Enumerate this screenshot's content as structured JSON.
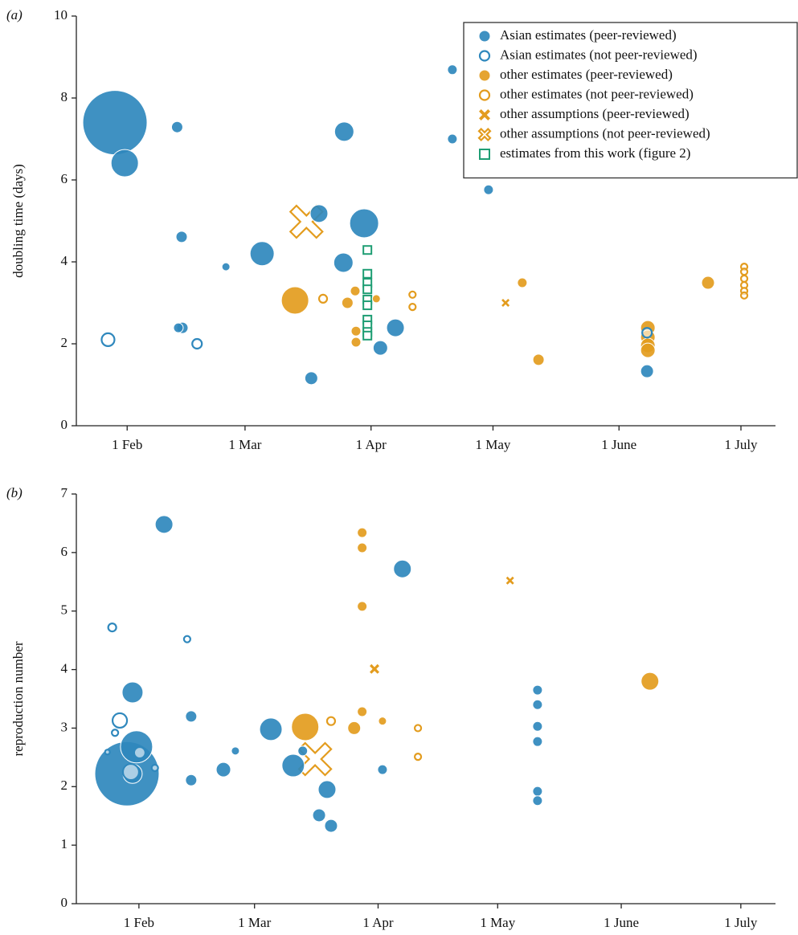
{
  "chart_data": [
    {
      "type": "scatter",
      "panel_label": "(a)",
      "y_label": "doubling time (days)",
      "xlim": [
        19.5,
        191.5
      ],
      "ylim": [
        0,
        10
      ],
      "xticks": [
        {
          "value": 32,
          "label": "1 Feb"
        },
        {
          "value": 61,
          "label": "1 Mar"
        },
        {
          "value": 92,
          "label": "1 Apr"
        },
        {
          "value": 122,
          "label": "1 May"
        },
        {
          "value": 153,
          "label": "1 June"
        },
        {
          "value": 183,
          "label": "1 July"
        }
      ],
      "yticks": [
        0,
        2,
        4,
        6,
        8,
        10
      ],
      "legend": "upper right",
      "series": [
        {
          "name": "Asian estimates (peer-reviewed)",
          "color": "#2f88bd",
          "marker": "circle",
          "x": [
            29.0,
            31.4,
            44.3,
            45.4,
            44.6,
            45.6,
            56.3,
            65.2,
            79.2,
            85.4,
            85.2,
            90.3,
            77.3,
            94.3,
            98.0,
            112.0,
            112.0,
            120.9,
            159.9
          ],
          "values": [
            7.4,
            6.41,
            7.29,
            4.61,
            2.39,
            2.39,
            3.88,
            4.2,
            5.18,
            7.18,
            3.98,
            4.94,
            1.16,
            1.9,
            2.39,
            8.69,
            7.0,
            5.76,
            1.33
          ],
          "sizes": [
            40,
            17,
            7,
            7,
            6,
            7,
            5,
            15,
            11,
            12,
            12,
            18,
            8,
            9,
            11,
            6,
            6,
            6,
            8
          ]
        },
        {
          "name": "Asian estimates (not peer-reviewed)",
          "color": "#2f88bd",
          "marker": "circle-open",
          "x": [
            27.3,
            49.2,
            159.9
          ],
          "values": [
            2.1,
            2.0,
            2.27
          ],
          "sizes": [
            9,
            7,
            7
          ]
        },
        {
          "name": "other estimates (peer-reviewed)",
          "color": "#e39c1e",
          "marker": "circle",
          "x": [
            73.3,
            86.2,
            88.1,
            88.3,
            88.3,
            93.3,
            129.2,
            133.2,
            160.1,
            160.1,
            160.1,
            160.1,
            174.9
          ],
          "values": [
            3.06,
            3.0,
            3.29,
            2.31,
            2.04,
            3.1,
            3.49,
            1.61,
            2.39,
            2.16,
            1.96,
            1.84,
            3.49
          ],
          "sizes": [
            17,
            7,
            6,
            6,
            6,
            5,
            6,
            7,
            9,
            9,
            9,
            9,
            8
          ]
        },
        {
          "name": "other estimates (not peer-reviewed)",
          "color": "#e39c1e",
          "marker": "circle-open",
          "x": [
            80.2,
            102.2,
            102.2,
            183.8,
            183.8,
            183.8,
            183.8,
            183.8,
            183.8
          ],
          "values": [
            3.1,
            3.2,
            2.9,
            3.88,
            3.76,
            3.59,
            3.43,
            3.29,
            3.18
          ],
          "sizes": [
            6,
            5,
            5,
            5,
            5,
            5,
            5,
            5,
            5
          ]
        },
        {
          "name": "other assumptions (peer-reviewed)",
          "color": "#e39c1e",
          "marker": "x",
          "x": [
            125.1
          ],
          "values": [
            3.0
          ],
          "sizes": [
            5
          ]
        },
        {
          "name": "other assumptions (not peer-reviewed)",
          "color": "#e39c1e",
          "marker": "x-open",
          "x": [
            76.1
          ],
          "values": [
            4.98
          ],
          "sizes": [
            20
          ]
        },
        {
          "name": "estimates from this work (figure 2)",
          "color": "#1f9e74",
          "marker": "square-open",
          "x": [
            91.1,
            91.1,
            91.1,
            91.1,
            91.1,
            91.1,
            91.1,
            91.1,
            91.1,
            91.1
          ],
          "values": [
            4.29,
            3.71,
            3.49,
            3.33,
            3.08,
            2.94,
            2.59,
            2.45,
            2.29,
            2.2
          ],
          "sizes": [
            6,
            6,
            6,
            6,
            6,
            6,
            6,
            6,
            6,
            6
          ]
        }
      ]
    },
    {
      "type": "scatter",
      "panel_label": "(b)",
      "y_label": "reproduction number",
      "xlim": [
        16.3,
        191.7
      ],
      "ylim": [
        0,
        7
      ],
      "xticks": [
        {
          "value": 32,
          "label": "1 Feb"
        },
        {
          "value": 61,
          "label": "1 Mar"
        },
        {
          "value": 92,
          "label": "1 Apr"
        },
        {
          "value": 122,
          "label": "1 May"
        },
        {
          "value": 153,
          "label": "1 June"
        },
        {
          "value": 183,
          "label": "1 July"
        }
      ],
      "yticks": [
        0,
        1,
        2,
        3,
        4,
        5,
        6,
        7
      ],
      "series": [
        {
          "color": "#2f88bd",
          "marker": "circle",
          "x": [
            29.0,
            31.4,
            30.4,
            30.4,
            38.3,
            45.1,
            45.1,
            53.2,
            56.2,
            65.1,
            70.7,
            73.1,
            77.2,
            79.2,
            80.2,
            93.1,
            98.1,
            132.0,
            132.0,
            132.0,
            132.0,
            132.0,
            132.0
          ],
          "values": [
            2.22,
            2.68,
            2.22,
            3.61,
            6.48,
            3.2,
            2.11,
            2.29,
            2.61,
            2.98,
            2.36,
            2.61,
            1.51,
            1.95,
            1.33,
            2.29,
            5.72,
            3.65,
            3.4,
            3.03,
            2.77,
            1.92,
            1.76
          ],
          "sizes": [
            40,
            20,
            12,
            13,
            11,
            7,
            7,
            9,
            5,
            14,
            14,
            6,
            8,
            11,
            8,
            6,
            11,
            6,
            6,
            6,
            6,
            6,
            6
          ]
        },
        {
          "color": "#2f88bd",
          "marker": "circle-open",
          "x": [
            25.3,
            27.2,
            26.0,
            24.1,
            32.2,
            30.0,
            36.0,
            44.1
          ],
          "values": [
            4.72,
            3.13,
            2.92,
            2.59,
            2.58,
            2.25,
            2.32,
            4.52
          ],
          "sizes": [
            6,
            10,
            5,
            4,
            8,
            11,
            5,
            5
          ]
        },
        {
          "color": "#e39c1e",
          "marker": "circle",
          "x": [
            73.7,
            88.0,
            88.0,
            88.0,
            88.0,
            86.0,
            93.1,
            160.2
          ],
          "values": [
            3.02,
            6.34,
            6.08,
            5.08,
            3.28,
            3.0,
            3.12,
            3.8
          ],
          "sizes": [
            17,
            6,
            6,
            6,
            6,
            8,
            5,
            11
          ]
        },
        {
          "color": "#e39c1e",
          "marker": "circle-open",
          "x": [
            80.2,
            102.0,
            102.0
          ],
          "values": [
            3.12,
            3.0,
            2.51
          ],
          "sizes": [
            6,
            5,
            5
          ]
        },
        {
          "color": "#e39c1e",
          "marker": "x",
          "x": [
            91.1,
            125.1
          ],
          "values": [
            4.01,
            5.52
          ],
          "sizes": [
            6,
            5
          ]
        },
        {
          "color": "#e39c1e",
          "marker": "x-open",
          "x": [
            76.2
          ],
          "values": [
            2.47
          ],
          "sizes": [
            20
          ]
        }
      ]
    }
  ]
}
